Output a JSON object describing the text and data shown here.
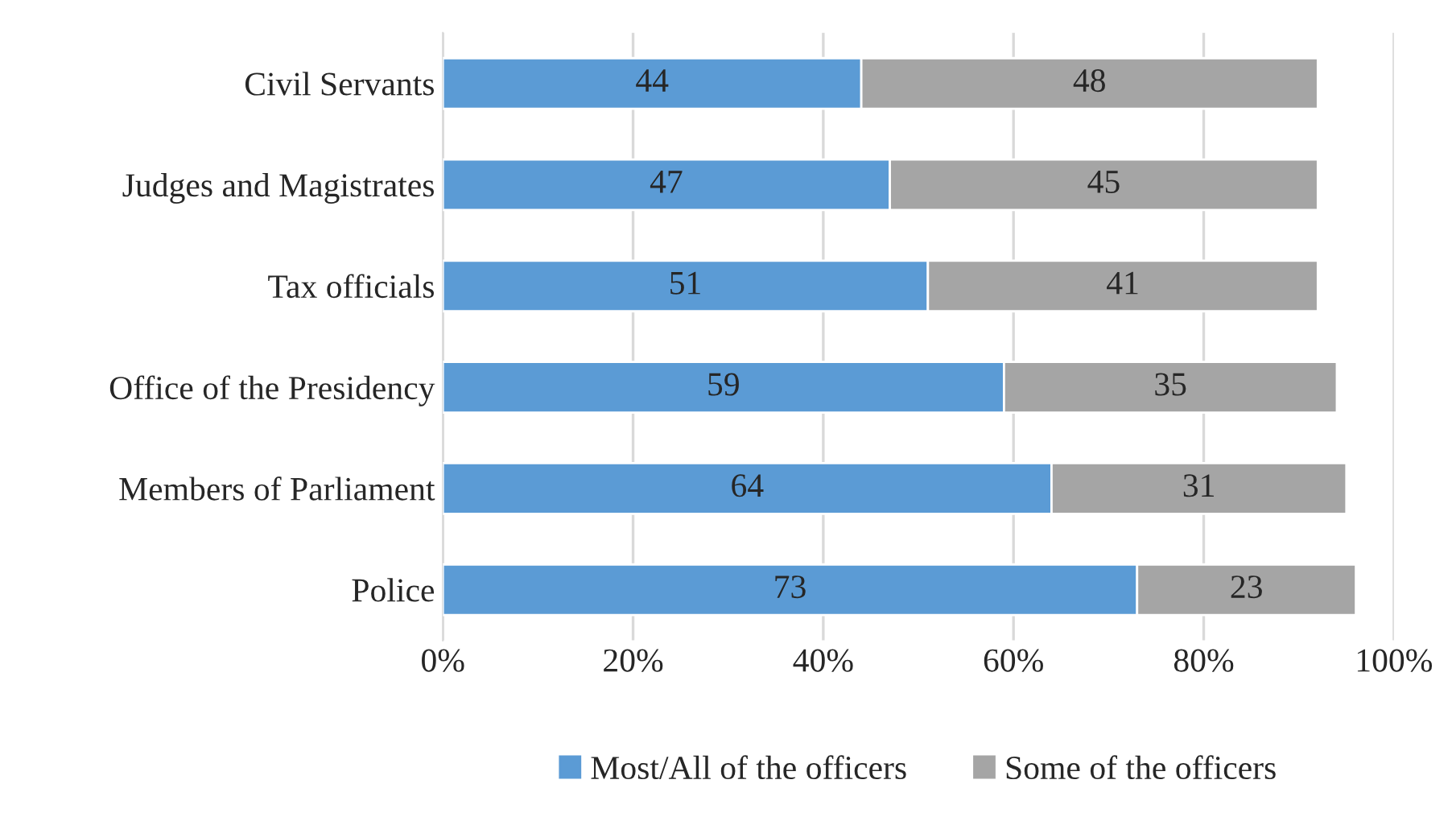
{
  "chart_data": {
    "type": "bar",
    "orientation": "horizontal",
    "stacked": true,
    "categories": [
      "Civil Servants",
      "Judges and Magistrates",
      "Tax officials",
      "Office of the Presidency",
      "Members of Parliament",
      "Police"
    ],
    "series": [
      {
        "name": "Most/All of the officers",
        "color": "#5b9bd5",
        "values": [
          44,
          47,
          51,
          59,
          64,
          73
        ]
      },
      {
        "name": "Some of the officers",
        "color": "#a5a5a5",
        "values": [
          48,
          45,
          41,
          35,
          31,
          23
        ]
      }
    ],
    "data_labels": true,
    "xlim": [
      0,
      100
    ],
    "xticks": [
      {
        "value": 0,
        "label": "0%"
      },
      {
        "value": 20,
        "label": "20%"
      },
      {
        "value": 40,
        "label": "40%"
      },
      {
        "value": 60,
        "label": "60%"
      },
      {
        "value": 80,
        "label": "80%"
      },
      {
        "value": 100,
        "label": "100%"
      }
    ],
    "grid": "x",
    "legend": "bottom"
  }
}
